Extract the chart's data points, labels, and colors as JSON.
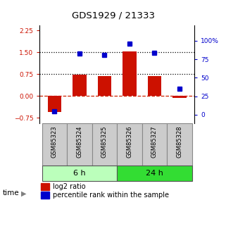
{
  "title": "GDS1929 / 21333",
  "samples": [
    "GSM85323",
    "GSM85324",
    "GSM85325",
    "GSM85326",
    "GSM85327",
    "GSM85328"
  ],
  "log2_ratio": [
    -0.55,
    0.72,
    0.68,
    1.52,
    0.68,
    -0.07
  ],
  "percentile_rank": [
    5,
    83,
    81,
    96,
    84,
    35
  ],
  "groups": [
    {
      "label": "6 h",
      "indices": [
        0,
        1,
        2
      ],
      "color": "#bbffbb"
    },
    {
      "label": "24 h",
      "indices": [
        3,
        4,
        5
      ],
      "color": "#33dd33"
    }
  ],
  "bar_color": "#cc1100",
  "dot_color": "#0000cc",
  "ylim_left": [
    -0.95,
    2.42
  ],
  "yticks_left": [
    -0.75,
    0,
    0.75,
    1.5,
    2.25
  ],
  "ylim_right": [
    -11.9,
    120.5
  ],
  "yticks_right": [
    0,
    25,
    50,
    75,
    100
  ],
  "yright_labels": [
    "0",
    "25",
    "50",
    "75",
    "100%"
  ],
  "hline_zero_color": "#cc2200",
  "hline_dotted_vals": [
    0.75,
    1.5
  ],
  "sample_bg": "#cccccc",
  "sample_border": "#888888"
}
